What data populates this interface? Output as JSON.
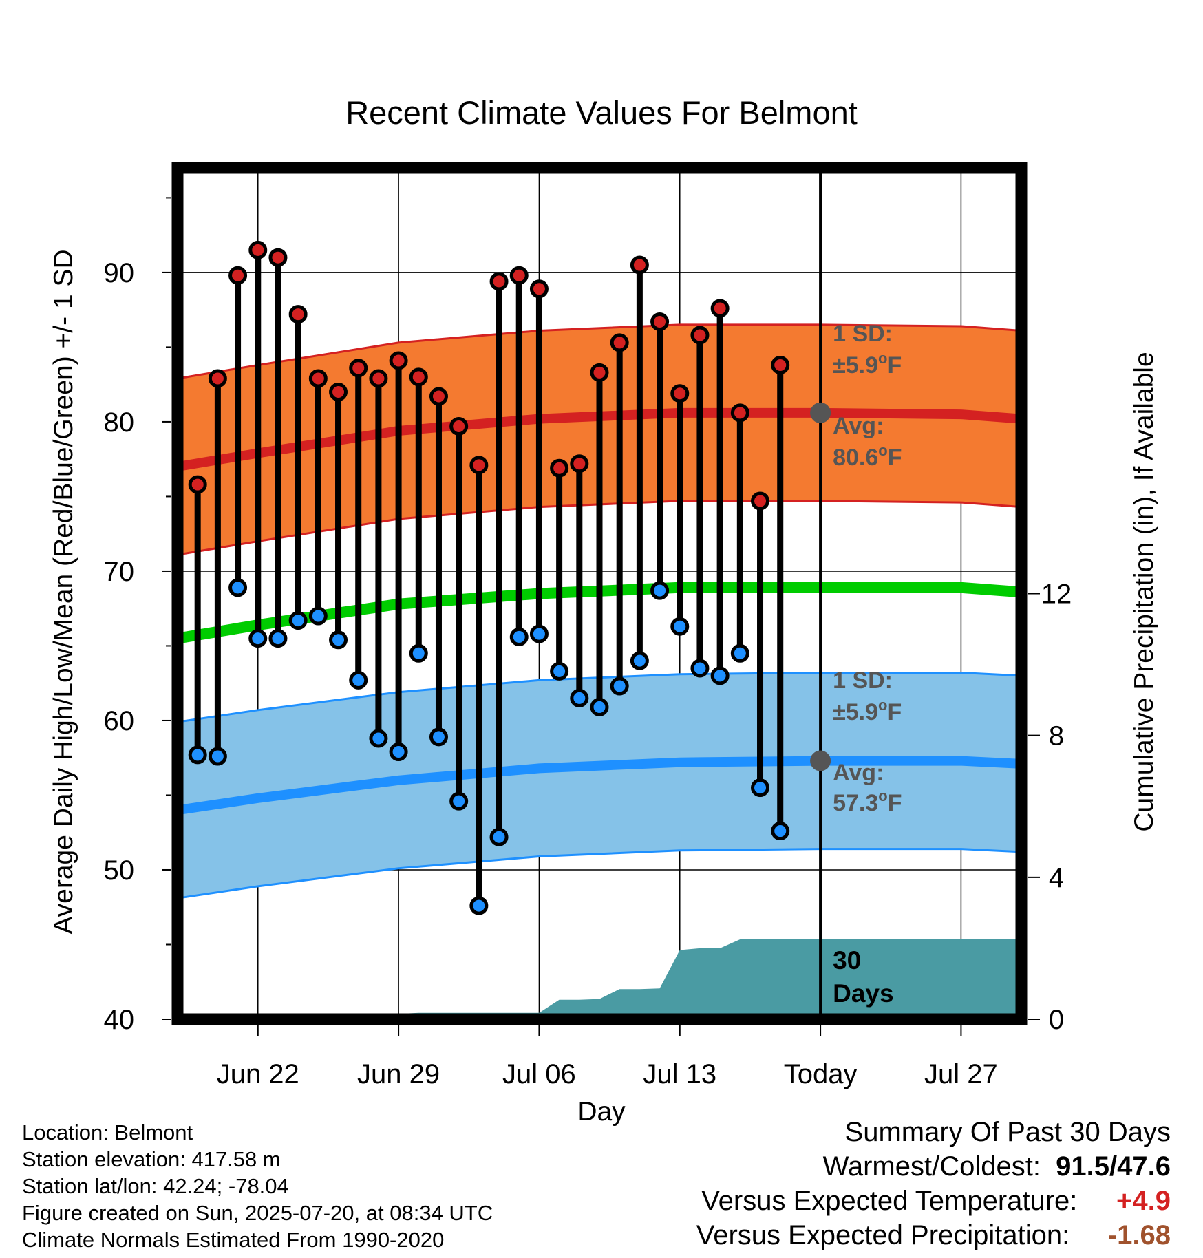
{
  "chart_data": {
    "type": "line",
    "title": "Recent Climate Values For Belmont",
    "xlabel": "Day",
    "ylabel": "Average Daily High/Low/Mean (Red/Blue/Green) +/- 1 SD",
    "ylabel_right": "Cumulative Precipitation (in), If Available",
    "ylim": [
      40,
      97
    ],
    "ylim_right": [
      0,
      24
    ],
    "yticks": [
      "40",
      "50",
      "60",
      "70",
      "80",
      "90"
    ],
    "yticks_right": [
      "0",
      "4",
      "8",
      "12"
    ],
    "x_tick_labels": [
      "Jun 22",
      "Jun 29",
      "Jul 06",
      "Jul 13",
      "Today",
      "Jul 27"
    ],
    "x_tick_dates": [
      "2025-06-22",
      "2025-06-29",
      "2025-07-06",
      "2025-07-13",
      "2025-07-20",
      "2025-07-27"
    ],
    "xlim": [
      "2025-06-18",
      "2025-07-30"
    ],
    "today": "2025-07-20",
    "dates": [
      "2025-06-19",
      "2025-06-20",
      "2025-06-21",
      "2025-06-22",
      "2025-06-23",
      "2025-06-24",
      "2025-06-25",
      "2025-06-26",
      "2025-06-27",
      "2025-06-28",
      "2025-06-29",
      "2025-06-30",
      "2025-07-01",
      "2025-07-02",
      "2025-07-03",
      "2025-07-04",
      "2025-07-05",
      "2025-07-06",
      "2025-07-07",
      "2025-07-08",
      "2025-07-09",
      "2025-07-10",
      "2025-07-11",
      "2025-07-12",
      "2025-07-13",
      "2025-07-14",
      "2025-07-15",
      "2025-07-16",
      "2025-07-17",
      "2025-07-18"
    ],
    "series": [
      {
        "name": "High",
        "color": "#d42121",
        "values": [
          75.8,
          82.9,
          89.8,
          91.5,
          91.0,
          87.2,
          82.9,
          82.0,
          83.6,
          82.9,
          84.1,
          83.0,
          81.7,
          79.7,
          77.1,
          89.4,
          89.8,
          88.9,
          76.9,
          77.2,
          83.3,
          85.3,
          90.5,
          86.7,
          81.9,
          85.8,
          87.6,
          80.6,
          74.7,
          83.8
        ]
      },
      {
        "name": "Low",
        "color": "#1e90ff",
        "values": [
          57.7,
          57.6,
          68.9,
          65.5,
          65.5,
          66.7,
          67.0,
          65.4,
          62.7,
          58.8,
          57.9,
          64.5,
          58.9,
          54.6,
          47.6,
          52.2,
          65.6,
          65.8,
          63.3,
          61.5,
          60.9,
          62.3,
          64.0,
          68.7,
          66.3,
          63.5,
          63.0,
          64.5,
          55.5,
          52.6
        ]
      }
    ],
    "normals": {
      "x": [
        "2025-06-18",
        "2025-06-22",
        "2025-06-29",
        "2025-07-06",
        "2025-07-13",
        "2025-07-20",
        "2025-07-27",
        "2025-07-30"
      ],
      "high_mean": [
        77.0,
        77.9,
        79.4,
        80.2,
        80.6,
        80.6,
        80.5,
        80.2
      ],
      "low_mean": [
        54.0,
        54.8,
        56.0,
        56.8,
        57.2,
        57.3,
        57.3,
        57.1
      ],
      "mean": [
        65.5,
        66.4,
        67.8,
        68.5,
        68.9,
        68.9,
        68.9,
        68.6
      ],
      "sd": 5.9
    },
    "precipitation": {
      "dates": [
        "2025-06-18",
        "2025-06-25",
        "2025-06-26",
        "2025-06-27",
        "2025-06-28",
        "2025-06-29",
        "2025-06-30",
        "2025-07-01",
        "2025-07-02",
        "2025-07-03",
        "2025-07-04",
        "2025-07-05",
        "2025-07-06",
        "2025-07-07",
        "2025-07-08",
        "2025-07-09",
        "2025-07-10",
        "2025-07-11",
        "2025-07-12",
        "2025-07-13",
        "2025-07-14",
        "2025-07-15",
        "2025-07-16",
        "2025-07-20",
        "2025-07-30"
      ],
      "values": [
        0,
        0,
        0.15,
        0.15,
        0.15,
        0.15,
        0.18,
        0.18,
        0.18,
        0.18,
        0.18,
        0.18,
        0.18,
        0.55,
        0.55,
        0.57,
        0.85,
        0.85,
        0.87,
        1.95,
        2.0,
        2.0,
        2.25,
        2.25,
        2.25
      ],
      "label_line1": "30",
      "label_line2": "Days"
    },
    "annotations": {
      "high_sd": "1 SD:",
      "high_sd_value": "±5.9",
      "high_avg": "Avg:",
      "high_avg_value": "80.6",
      "low_sd": "1 SD:",
      "low_sd_value": "±5.9",
      "low_avg": "Avg:",
      "low_avg_value": "57.3",
      "unit_degree": "o",
      "unit_letter": "F"
    }
  },
  "footer": {
    "lines": [
      "Location: Belmont",
      "Station elevation: 417.58 m",
      "Station lat/lon: 42.24; -78.04",
      "Figure created on Sun, 2025-07-20, at 08:34 UTC",
      "Climate Normals Estimated From 1990-2020"
    ]
  },
  "summary": {
    "heading": "Summary Of Past 30 Days",
    "warm_cold_label": "Warmest/Coldest:",
    "warm_cold_value": "91.5/47.6",
    "temp_label": "Versus Expected Temperature:",
    "temp_value": "+4.9",
    "precip_label": "Versus Expected Precipitation:",
    "precip_value": "-1.68"
  },
  "colors": {
    "high": "#d42121",
    "high_band": "#f47a30",
    "low": "#1e90ff",
    "low_band": "#85c2e8",
    "mean": "#00cc00",
    "precip": "#4a9ba3",
    "annotation": "#555555"
  }
}
